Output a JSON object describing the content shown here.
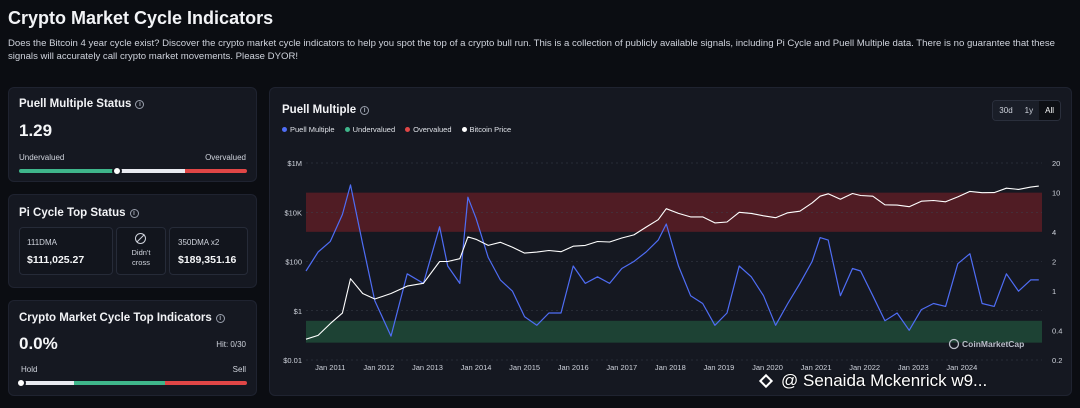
{
  "page": {
    "title": "Crypto Market Cycle Indicators",
    "description": "Does the Bitcoin 4 year cycle exist? Discover the crypto market cycle indicators to help you spot the top of a crypto bull run. This is a collection of publicly available signals, including Pi Cycle and Puell Multiple data. There is no guarantee that these signals will accurately call crypto market movements. Please DYOR!"
  },
  "puell_status": {
    "title": "Puell Multiple Status",
    "value": "1.29",
    "left_label": "Undervalued",
    "right_label": "Overvalued",
    "position_fraction": 0.43
  },
  "pi_cycle": {
    "title": "Pi Cycle Top Status",
    "dma111_label": "111DMA",
    "dma111_value": "$111,025.27",
    "cross_label_1": "Didn't",
    "cross_label_2": "cross",
    "dma350_label": "350DMA x2",
    "dma350_value": "$189,351.16"
  },
  "top_indicators": {
    "title": "Crypto Market Cycle Top Indicators",
    "value": "0.0%",
    "hit": "Hit: 0/30",
    "left_label": "Hold",
    "right_label": "Sell",
    "position_fraction": 0.0
  },
  "chart_panel": {
    "title": "Puell Multiple",
    "ranges": [
      "30d",
      "1y",
      "All"
    ],
    "active_range": "All",
    "legend": {
      "puell": "Puell Multiple",
      "undervalued": "Undervalued",
      "overvalued": "Overvalued",
      "btc": "Bitcoin Price"
    },
    "brand": "CoinMarketCap"
  },
  "watermark": "@ Senaida Mckenrick w9...",
  "colors": {
    "puell": "#4f6df5",
    "undervalued": "#3fb68b",
    "overvalued": "#e04646",
    "btc": "#ffffff",
    "bg": "#0b0d12",
    "card": "#151821"
  },
  "chart_data": {
    "type": "line",
    "x": [
      "2010-07",
      "2010-10",
      "2011-01",
      "2011-04",
      "2011-06",
      "2011-09",
      "2011-12",
      "2012-04",
      "2012-08",
      "2012-12",
      "2013-04",
      "2013-06",
      "2013-09",
      "2013-11",
      "2014-01",
      "2014-04",
      "2014-07",
      "2014-10",
      "2015-01",
      "2015-04",
      "2015-07",
      "2015-10",
      "2016-01",
      "2016-04",
      "2016-07",
      "2016-10",
      "2017-01",
      "2017-04",
      "2017-07",
      "2017-10",
      "2017-12",
      "2018-03",
      "2018-06",
      "2018-09",
      "2018-12",
      "2019-03",
      "2019-06",
      "2019-09",
      "2019-12",
      "2020-03",
      "2020-06",
      "2020-09",
      "2020-12",
      "2021-02",
      "2021-04",
      "2021-07",
      "2021-10",
      "2021-12",
      "2022-03",
      "2022-06",
      "2022-09",
      "2022-12",
      "2023-03",
      "2023-06",
      "2023-09",
      "2023-12",
      "2024-03",
      "2024-06",
      "2024-09",
      "2024-12",
      "2025-03",
      "2025-06",
      "2025-08"
    ],
    "x_ticks": [
      "Jan 2011",
      "Jan 2012",
      "Jan 2013",
      "Jan 2014",
      "Jan 2015",
      "Jan 2016",
      "Jan 2017",
      "Jan 2018",
      "Jan 2019",
      "Jan 2020",
      "Jan 2021",
      "Jan 2022",
      "Jan 2023",
      "Jan 2024"
    ],
    "y_left_ticks": [
      "$1M",
      "$10K",
      "$100",
      "$1",
      "$0.01"
    ],
    "y_right_ticks": [
      "20",
      "10",
      "4",
      "2",
      "1",
      "0.4",
      "0.2"
    ],
    "y_left_scale": "log",
    "y_right_scale": "log",
    "y_left_range": [
      0.01,
      1000000
    ],
    "y_right_range": [
      0.2,
      20
    ],
    "overvalued_band": [
      4,
      10
    ],
    "undervalued_band": [
      0.3,
      0.5
    ],
    "series": [
      {
        "name": "Puell Multiple",
        "axis": "right",
        "values": [
          1.6,
          2.5,
          3.2,
          6.0,
          12.0,
          3.0,
          0.8,
          0.35,
          1.5,
          1.2,
          4.5,
          1.8,
          1.2,
          9.0,
          5.5,
          2.2,
          1.3,
          1.0,
          0.55,
          0.45,
          0.6,
          0.6,
          1.8,
          1.2,
          1.4,
          1.2,
          1.7,
          2.0,
          2.5,
          3.3,
          4.8,
          1.8,
          0.9,
          0.75,
          0.45,
          0.6,
          1.8,
          1.4,
          0.9,
          0.45,
          0.75,
          1.2,
          2.0,
          3.5,
          3.3,
          0.9,
          1.7,
          1.6,
          0.9,
          0.5,
          0.6,
          0.4,
          0.65,
          0.75,
          0.7,
          1.9,
          2.4,
          0.75,
          0.7,
          1.5,
          1.0,
          1.3,
          1.3
        ]
      },
      {
        "name": "Bitcoin Price",
        "axis": "left",
        "values": [
          0.07,
          0.1,
          0.3,
          0.8,
          20,
          5,
          3,
          5,
          10,
          13,
          100,
          100,
          130,
          1000,
          800,
          450,
          600,
          380,
          220,
          240,
          280,
          250,
          420,
          450,
          650,
          620,
          900,
          1200,
          2500,
          5000,
          14000,
          9000,
          6500,
          6500,
          3700,
          4000,
          10000,
          9000,
          7200,
          6000,
          9500,
          11000,
          24000,
          45000,
          56000,
          34000,
          58000,
          48000,
          45000,
          20000,
          19500,
          16800,
          28000,
          30000,
          26500,
          42000,
          70000,
          62000,
          63000,
          95000,
          85000,
          105000,
          115000
        ]
      }
    ]
  }
}
